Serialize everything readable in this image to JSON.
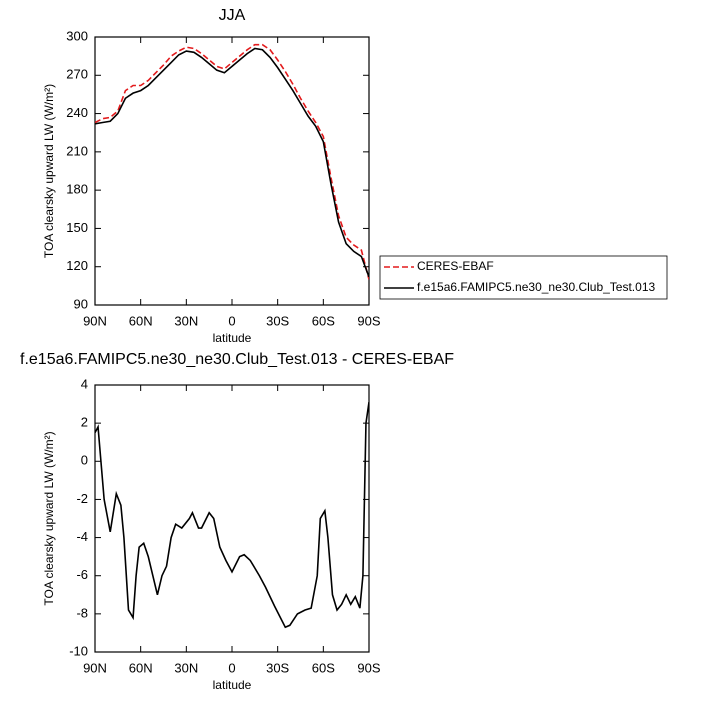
{
  "chart_data": [
    {
      "type": "line",
      "title": "JJA",
      "xlabel": "latitude",
      "ylabel": "TOA clearsky upward LW (W/m²)",
      "x": [
        90,
        85,
        80,
        75,
        70,
        65,
        60,
        55,
        50,
        45,
        40,
        35,
        30,
        25,
        20,
        15,
        10,
        5,
        0,
        -5,
        -10,
        -15,
        -20,
        -25,
        -30,
        -35,
        -40,
        -45,
        -50,
        -55,
        -60,
        -65,
        -70,
        -75,
        -80,
        -85,
        -90
      ],
      "xlim": [
        90,
        -90
      ],
      "xticks": [
        {
          "value": 90,
          "label": "90N"
        },
        {
          "value": 60,
          "label": "60N"
        },
        {
          "value": 30,
          "label": "30N"
        },
        0,
        {
          "value": -30,
          "label": "30S"
        },
        {
          "value": -60,
          "label": "60S"
        },
        {
          "value": -90,
          "label": "90S"
        }
      ],
      "ylim": [
        90,
        300
      ],
      "yticks": [
        90,
        120,
        150,
        180,
        210,
        240,
        270,
        300
      ],
      "legend": "right",
      "series": [
        {
          "name": "CERES-EBAF",
          "color": "#e31a1c",
          "dashed": true,
          "values": [
            233,
            236,
            237,
            242,
            258,
            262,
            262,
            266,
            272,
            278,
            285,
            289,
            292,
            291,
            287,
            282,
            277,
            275,
            280,
            285,
            290,
            294,
            294,
            290,
            282,
            273,
            263,
            252,
            242,
            233,
            222,
            190,
            160,
            143,
            137,
            133,
            110
          ]
        },
        {
          "name": "f.e15a6.FAMIPC5.ne30_ne30.Club_Test.013",
          "color": "#000000",
          "dashed": false,
          "values": [
            232,
            233,
            234,
            240,
            252,
            256,
            258,
            262,
            268,
            274,
            280,
            286,
            289,
            288,
            284,
            279,
            274,
            272,
            277,
            282,
            287,
            291,
            290,
            284,
            276,
            267,
            258,
            248,
            238,
            230,
            218,
            185,
            155,
            138,
            132,
            128,
            112
          ]
        }
      ]
    },
    {
      "type": "line",
      "title": "f.e15a6.FAMIPC5.ne30_ne30.Club_Test.013 - CERES-EBAF",
      "xlabel": "latitude",
      "ylabel": "TOA clearsky upward LW (W/m²)",
      "x": [
        90,
        88,
        84,
        80,
        76,
        73,
        71,
        68,
        65,
        63,
        61,
        58,
        55,
        52,
        49,
        46,
        43,
        40,
        37,
        33,
        28,
        26,
        22,
        20,
        15,
        12,
        8,
        4,
        0,
        -5,
        -8,
        -12,
        -18,
        -22,
        -28,
        -35,
        -38,
        -43,
        -48,
        -52,
        -56,
        -58,
        -61,
        -63,
        -66,
        -69,
        -72,
        -75,
        -78,
        -81,
        -84,
        -86,
        -88,
        -90
      ],
      "values": [
        1.5,
        1.8,
        -2,
        -3.7,
        -1.7,
        -2.3,
        -4,
        -7.8,
        -8.2,
        -6,
        -4.5,
        -4.3,
        -5,
        -6,
        -7,
        -6,
        -5.5,
        -4,
        -3.3,
        -3.5,
        -3,
        -2.7,
        -3.5,
        -3.5,
        -2.7,
        -3,
        -4.5,
        -5.2,
        -5.8,
        -5,
        -4.9,
        -5.2,
        -6,
        -6.6,
        -7.6,
        -8.7,
        -8.6,
        -8,
        -7.8,
        -7.7,
        -6,
        -3,
        -2.6,
        -4,
        -7,
        -7.8,
        -7.5,
        -7,
        -7.5,
        -7.1,
        -7.7,
        -6,
        2,
        3.1
      ],
      "color": "#000000",
      "xlim": [
        90,
        -90
      ],
      "xticks": [
        {
          "value": 90,
          "label": "90N"
        },
        {
          "value": 60,
          "label": "60N"
        },
        {
          "value": 30,
          "label": "30N"
        },
        0,
        {
          "value": -30,
          "label": "30S"
        },
        {
          "value": -60,
          "label": "60S"
        },
        {
          "value": -90,
          "label": "90S"
        }
      ],
      "ylim": [
        -10,
        4
      ],
      "yticks": [
        -10,
        -8,
        -6,
        -4,
        -2,
        0,
        2,
        4
      ]
    }
  ]
}
